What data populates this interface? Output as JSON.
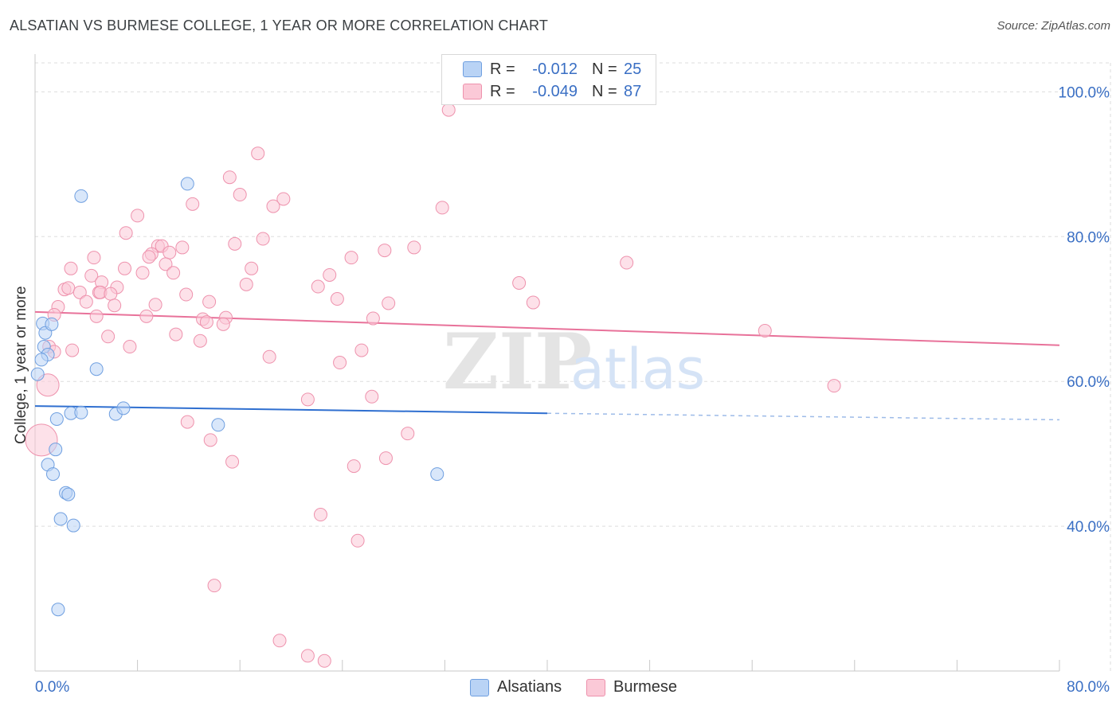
{
  "title": "ALSATIAN VS BURMESE COLLEGE, 1 YEAR OR MORE CORRELATION CHART",
  "source": "Source: ZipAtlas.com",
  "legend": {
    "r_label": "R =",
    "n_label": "N =",
    "rows": [
      {
        "name": "Alsatians",
        "r": "-0.012",
        "n": "25",
        "fill": "#b9d3f5",
        "stroke": "#6f9fe0"
      },
      {
        "name": "Burmese",
        "r": "-0.049",
        "n": "87",
        "fill": "#fbc9d7",
        "stroke": "#ee92ad"
      }
    ]
  },
  "colors": {
    "blue_line": "#2f6fd0",
    "pink_line": "#e8729a",
    "axis_text": "#3a6fc4",
    "grid": "#dddddd"
  },
  "chart_data": {
    "type": "scatter",
    "title": "ALSATIAN VS BURMESE COLLEGE, 1 YEAR OR MORE CORRELATION CHART",
    "xlabel": "",
    "ylabel": "College, 1 year or more",
    "xlim": [
      0,
      80
    ],
    "ylim": [
      20,
      104
    ],
    "x_tick_labels": [
      "0.0%",
      "80.0%"
    ],
    "y_ticks": [
      40,
      60,
      80,
      100
    ],
    "y_tick_labels": [
      "40.0%",
      "60.0%",
      "80.0%",
      "100.0%"
    ],
    "watermark": "ZIPatlas",
    "series": [
      {
        "name": "Alsatians",
        "r": -0.012,
        "n": 25,
        "trend": {
          "x0": 0,
          "y0": 56.6,
          "x1": 40,
          "y1": 55.6,
          "dash_to_x": 80,
          "dash_y": 54.7
        },
        "points": [
          [
            0.6,
            68.0
          ],
          [
            0.8,
            66.7
          ],
          [
            1.3,
            67.9
          ],
          [
            0.7,
            64.8
          ],
          [
            1.0,
            63.7
          ],
          [
            0.5,
            63.0
          ],
          [
            0.2,
            61.0
          ],
          [
            3.6,
            85.6
          ],
          [
            11.9,
            87.3
          ],
          [
            4.8,
            61.7
          ],
          [
            1.7,
            54.8
          ],
          [
            2.8,
            55.6
          ],
          [
            3.6,
            55.7
          ],
          [
            6.3,
            55.5
          ],
          [
            6.9,
            56.3
          ],
          [
            14.3,
            54.0
          ],
          [
            1.6,
            50.6
          ],
          [
            1.0,
            48.5
          ],
          [
            1.4,
            47.2
          ],
          [
            2.4,
            44.6
          ],
          [
            2.6,
            44.4
          ],
          [
            2.0,
            41.0
          ],
          [
            3.0,
            40.1
          ],
          [
            31.4,
            47.2
          ],
          [
            1.8,
            28.5
          ]
        ]
      },
      {
        "name": "Burmese",
        "r": -0.049,
        "n": 87,
        "trend": {
          "x0": 0,
          "y0": 69.6,
          "x1": 80,
          "y1": 65.0
        },
        "points": [
          [
            32.3,
            97.5
          ],
          [
            17.4,
            91.5
          ],
          [
            15.2,
            88.2
          ],
          [
            16.0,
            85.8
          ],
          [
            19.4,
            85.2
          ],
          [
            18.6,
            84.2
          ],
          [
            31.8,
            84.0
          ],
          [
            12.3,
            84.5
          ],
          [
            8.0,
            82.9
          ],
          [
            7.1,
            80.5
          ],
          [
            17.8,
            79.7
          ],
          [
            15.6,
            79.0
          ],
          [
            9.6,
            78.7
          ],
          [
            9.9,
            78.7
          ],
          [
            11.5,
            78.5
          ],
          [
            29.6,
            78.5
          ],
          [
            27.3,
            78.1
          ],
          [
            9.1,
            77.6
          ],
          [
            10.5,
            77.8
          ],
          [
            8.9,
            77.2
          ],
          [
            4.6,
            77.1
          ],
          [
            24.7,
            77.1
          ],
          [
            7.0,
            75.6
          ],
          [
            10.2,
            76.2
          ],
          [
            2.8,
            75.6
          ],
          [
            16.9,
            75.6
          ],
          [
            8.4,
            75.0
          ],
          [
            10.8,
            75.0
          ],
          [
            4.4,
            74.6
          ],
          [
            23.0,
            74.7
          ],
          [
            5.2,
            73.7
          ],
          [
            16.5,
            73.4
          ],
          [
            22.1,
            73.1
          ],
          [
            6.4,
            73.0
          ],
          [
            2.3,
            72.7
          ],
          [
            2.6,
            72.9
          ],
          [
            5.0,
            72.3
          ],
          [
            5.1,
            72.3
          ],
          [
            3.5,
            72.3
          ],
          [
            5.9,
            72.1
          ],
          [
            11.8,
            72.0
          ],
          [
            23.6,
            71.4
          ],
          [
            4.0,
            71.0
          ],
          [
            13.6,
            71.0
          ],
          [
            27.6,
            70.8
          ],
          [
            38.9,
            70.9
          ],
          [
            1.8,
            70.3
          ],
          [
            6.2,
            70.5
          ],
          [
            9.4,
            70.6
          ],
          [
            1.5,
            69.2
          ],
          [
            4.8,
            69.0
          ],
          [
            8.7,
            69.0
          ],
          [
            26.4,
            68.7
          ],
          [
            14.9,
            68.8
          ],
          [
            13.1,
            68.6
          ],
          [
            13.4,
            68.2
          ],
          [
            14.7,
            67.9
          ],
          [
            37.8,
            73.6
          ],
          [
            46.2,
            76.4
          ],
          [
            57.0,
            67.0
          ],
          [
            5.7,
            66.2
          ],
          [
            11.0,
            66.5
          ],
          [
            12.9,
            65.6
          ],
          [
            1.1,
            64.8
          ],
          [
            1.5,
            64.1
          ],
          [
            2.9,
            64.3
          ],
          [
            7.4,
            64.8
          ],
          [
            25.5,
            64.3
          ],
          [
            18.3,
            63.4
          ],
          [
            23.8,
            62.6
          ],
          [
            1.0,
            59.5
          ],
          [
            62.4,
            59.4
          ],
          [
            0.5,
            51.9
          ],
          [
            21.3,
            57.5
          ],
          [
            26.3,
            57.9
          ],
          [
            11.9,
            54.4
          ],
          [
            13.7,
            51.9
          ],
          [
            29.1,
            52.8
          ],
          [
            27.4,
            49.4
          ],
          [
            15.4,
            48.9
          ],
          [
            24.9,
            48.3
          ],
          [
            22.3,
            41.6
          ],
          [
            25.2,
            38.0
          ],
          [
            14.0,
            31.8
          ],
          [
            19.1,
            24.2
          ],
          [
            21.3,
            22.1
          ],
          [
            22.6,
            21.4
          ]
        ]
      }
    ]
  }
}
